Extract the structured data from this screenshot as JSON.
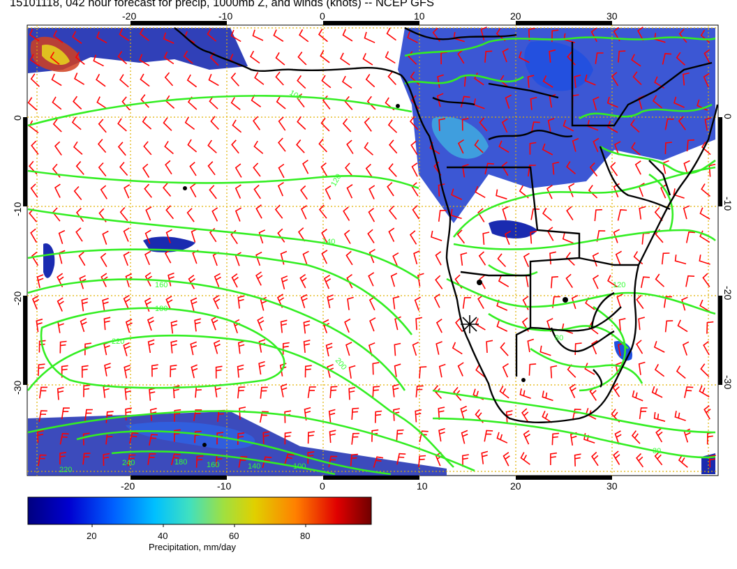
{
  "title": "15101118, 042 hour forecast for precip, 1000mb Z, and winds (knots) -- NCEP GFS",
  "lon_ticks_top": [
    "-20",
    "-10",
    "0",
    "10",
    "20",
    "30"
  ],
  "lon_ticks_bottom": [
    "-20",
    "-10",
    "0",
    "10",
    "20",
    "30"
  ],
  "lat_ticks_left": [
    "0",
    "-10",
    "-20",
    "-30"
  ],
  "lat_ticks_right": [
    "0",
    "-10",
    "-20",
    "-30"
  ],
  "contour_labels": [
    "100",
    "120",
    "140",
    "160",
    "180",
    "200",
    "220",
    "240",
    "220",
    "180",
    "160",
    "140",
    "100",
    "30",
    "80",
    "120"
  ],
  "colorbar": {
    "ticks": [
      "20",
      "40",
      "60",
      "80"
    ],
    "label": "Precipitation, mm/day"
  },
  "colors": {
    "wind_barb": "#ff0000",
    "contour": "#33ee22",
    "coast": "#000000",
    "grid": "#e0b000"
  },
  "legend_stops": [
    "#000080",
    "#0000d0",
    "#0060ff",
    "#00c0ff",
    "#40e0c0",
    "#a0e040",
    "#e0d000",
    "#ff8000",
    "#e00000",
    "#700000"
  ]
}
